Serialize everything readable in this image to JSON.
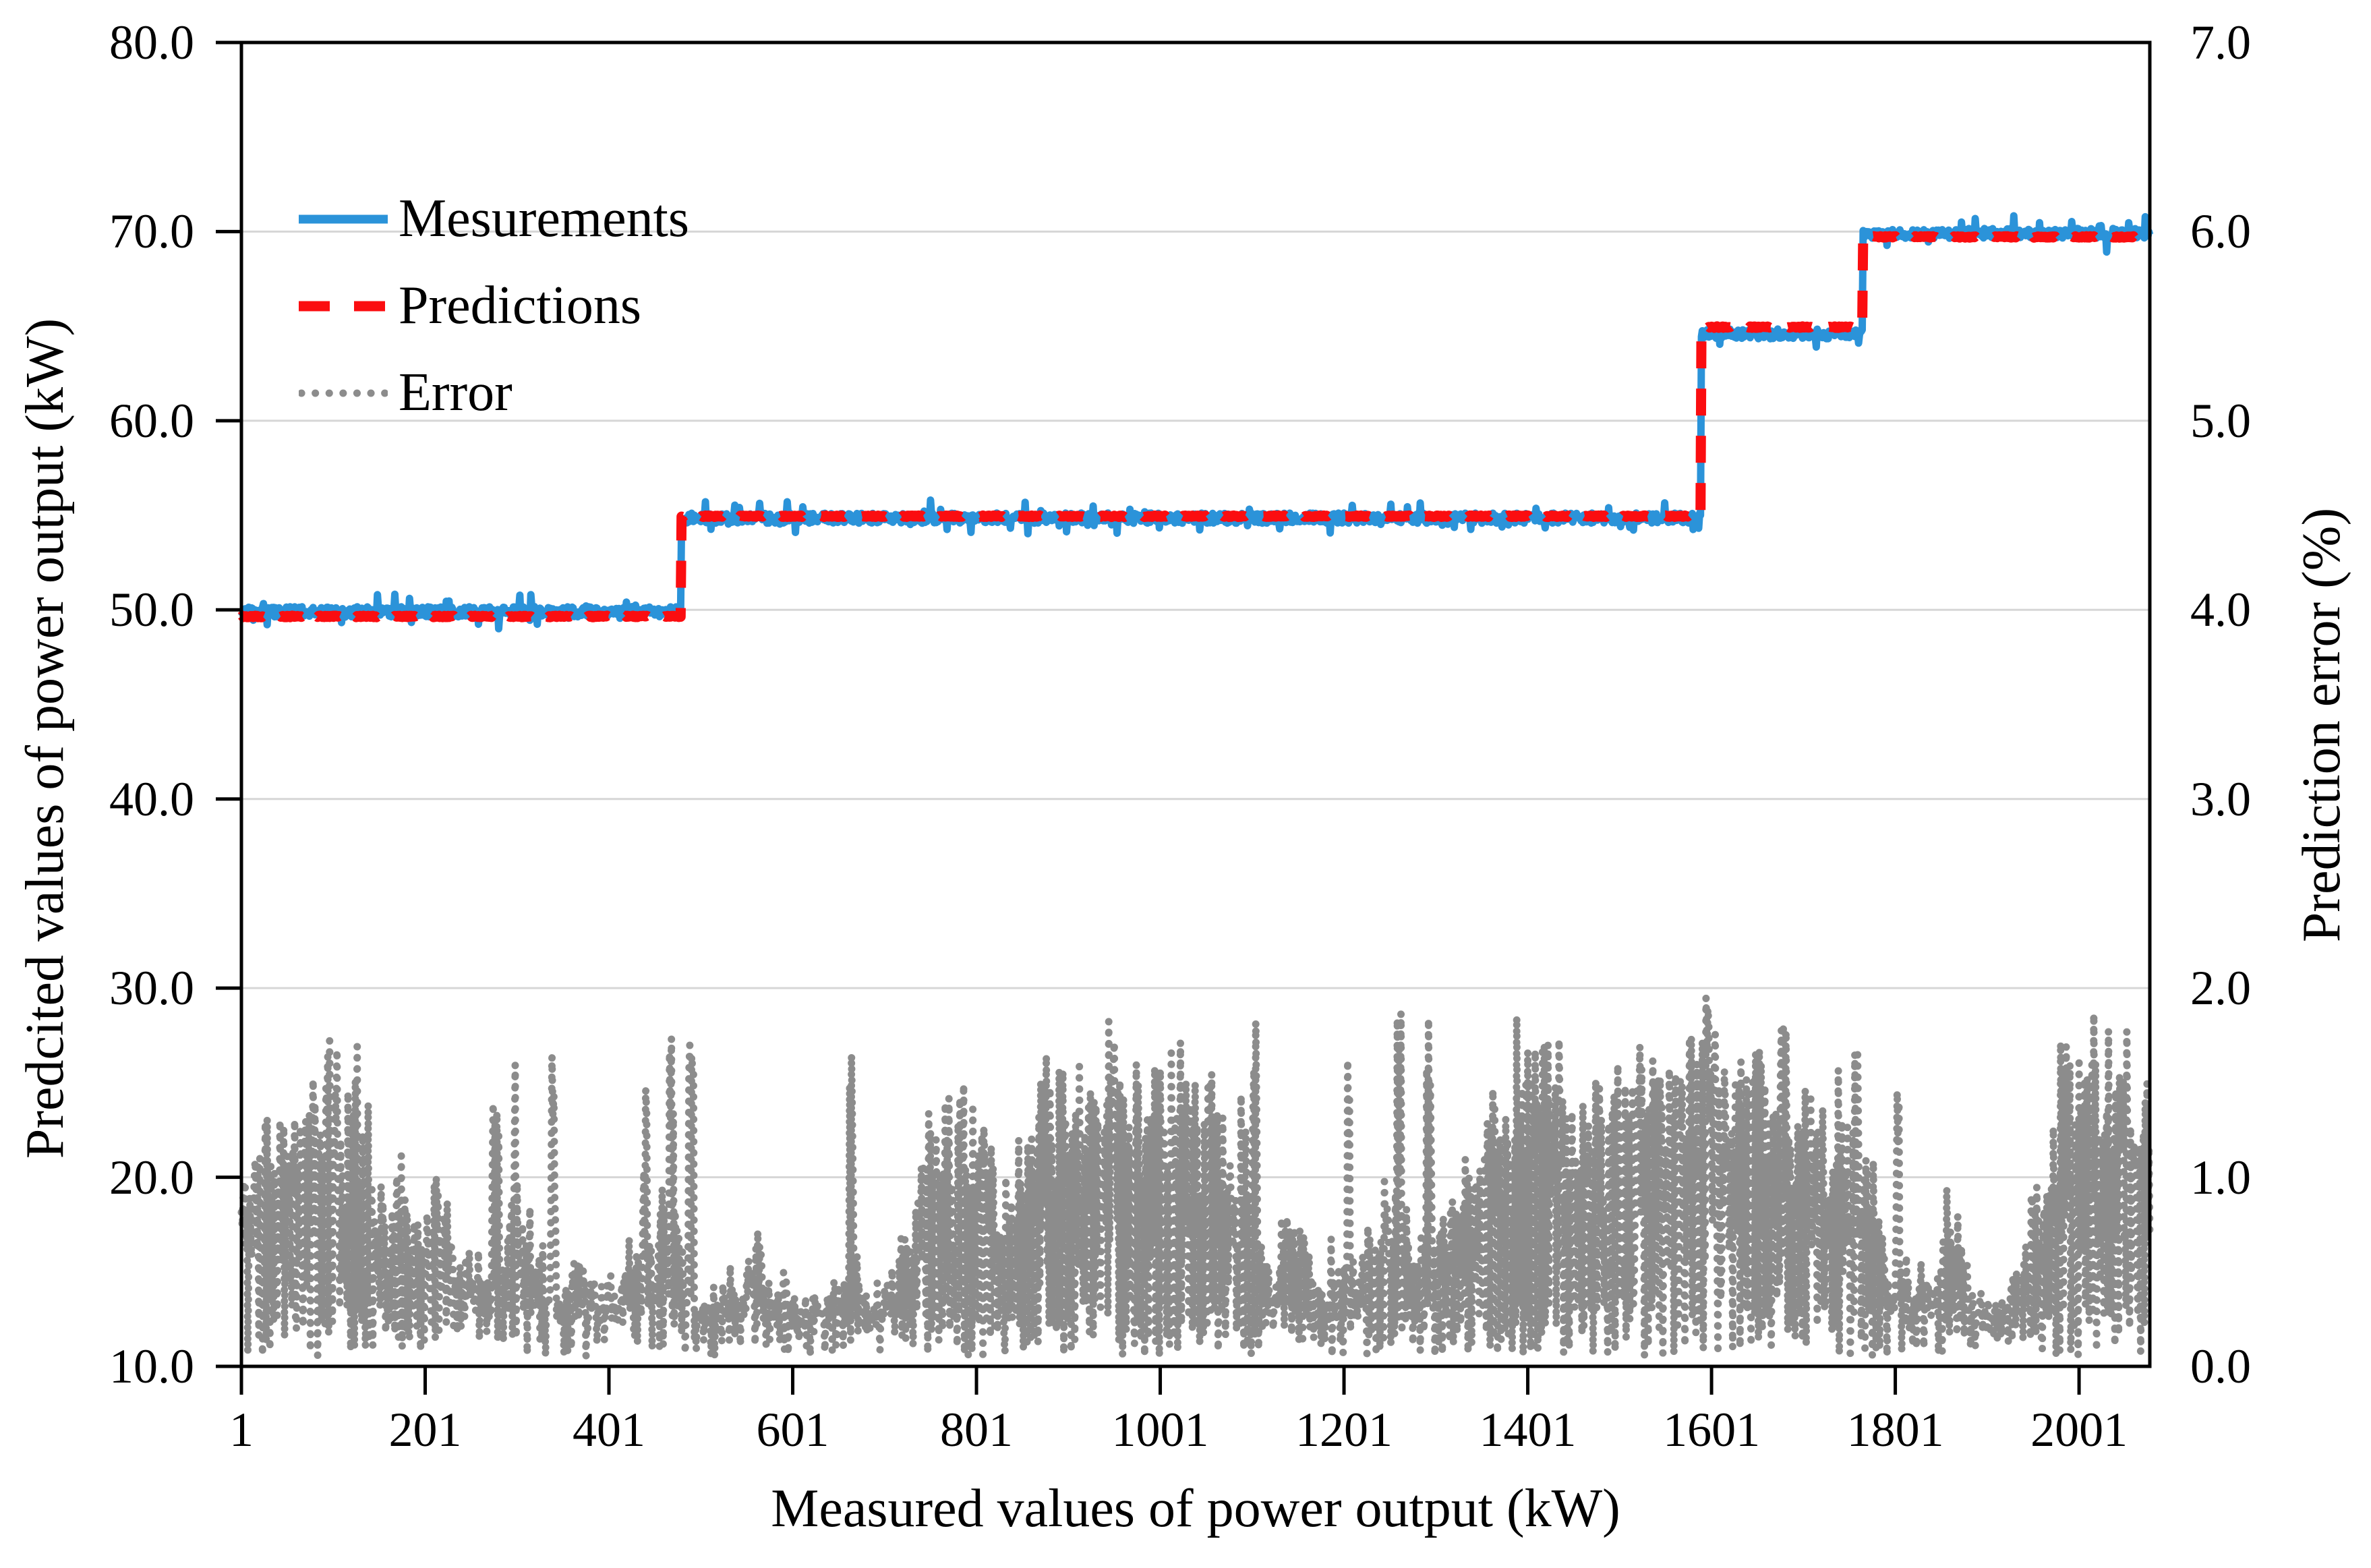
{
  "figure_background": "#ffffff",
  "chart_data": {
    "type": "line",
    "title": "",
    "x_axis": {
      "label": "Measured values of power output (kW)",
      "tick_labels": [
        "1",
        "201",
        "401",
        "601",
        "801",
        "1001",
        "1201",
        "1401",
        "1601",
        "1801",
        "2001"
      ],
      "tick_values": [
        1,
        201,
        401,
        601,
        801,
        1001,
        1201,
        1401,
        1601,
        1801,
        2001
      ],
      "range": [
        1,
        2078
      ],
      "grid": false
    },
    "y_axis_left": {
      "label": "Predcited values of power output (kW)",
      "tick_labels": [
        "80.0",
        "70.0",
        "60.0",
        "50.0",
        "40.0",
        "30.0",
        "20.0",
        "10.0"
      ],
      "tick_values": [
        80,
        70,
        60,
        50,
        40,
        30,
        20,
        10
      ],
      "range": [
        10,
        80
      ],
      "grid": true,
      "gridline_values": [
        70,
        60,
        50,
        40,
        30,
        20
      ]
    },
    "y_axis_right": {
      "label": "Prediction error (%)",
      "tick_labels": [
        "7.0",
        "6.0",
        "5.0",
        "4.0",
        "3.0",
        "2.0",
        "1.0",
        "0.0"
      ],
      "tick_values": [
        7,
        6,
        5,
        4,
        3,
        2,
        1,
        0
      ],
      "range": [
        0,
        7
      ]
    },
    "legend": {
      "position": "top-left-inside",
      "items": [
        {
          "label": "Mesurements",
          "color": "#2B93D9",
          "style": "solid"
        },
        {
          "label": "Predictions",
          "color": "#FB0D10",
          "style": "dashed"
        },
        {
          "label": "Error",
          "color": "#8C8C8C",
          "style": "dotted"
        }
      ]
    },
    "series": [
      {
        "name": "Mesurements",
        "axis": "left",
        "type": "noisy-step-line",
        "color": "#2B93D9",
        "steps": [
          {
            "x_from": 1,
            "x_to": 479,
            "level": 49.9
          },
          {
            "x_from": 480,
            "x_to": 1589,
            "level": 54.85
          },
          {
            "x_from": 1590,
            "x_to": 1765,
            "level": 64.6
          },
          {
            "x_from": 1766,
            "x_to": 2078,
            "level": 69.9
          }
        ],
        "noise_amplitude": 0.27,
        "spike_amplitude": 0.75
      },
      {
        "name": "Predictions",
        "axis": "left",
        "type": "step-line",
        "color": "#FB0D10",
        "steps": [
          {
            "x_from": 1,
            "x_to": 479,
            "level": 49.65
          },
          {
            "x_from": 480,
            "x_to": 1589,
            "level": 54.95
          },
          {
            "x_from": 1590,
            "x_to": 1765,
            "level": 64.95
          },
          {
            "x_from": 1766,
            "x_to": 2078,
            "level": 69.72
          }
        ],
        "noise_amplitude": 0.04
      },
      {
        "name": "Error",
        "axis": "right",
        "type": "dotted-line",
        "color": "#8C8C8C",
        "min": 0.02,
        "max": 1.95,
        "typical_range": [
          0.1,
          1.5
        ],
        "spike_locations_x": [
          490,
          950,
          1600,
          1680
        ],
        "description": "oscillating absolute prediction error, 0-2%"
      }
    ],
    "plot_colors": {
      "gridline": "#D6D6D6",
      "axis": "#000000",
      "background": "#ffffff"
    }
  }
}
